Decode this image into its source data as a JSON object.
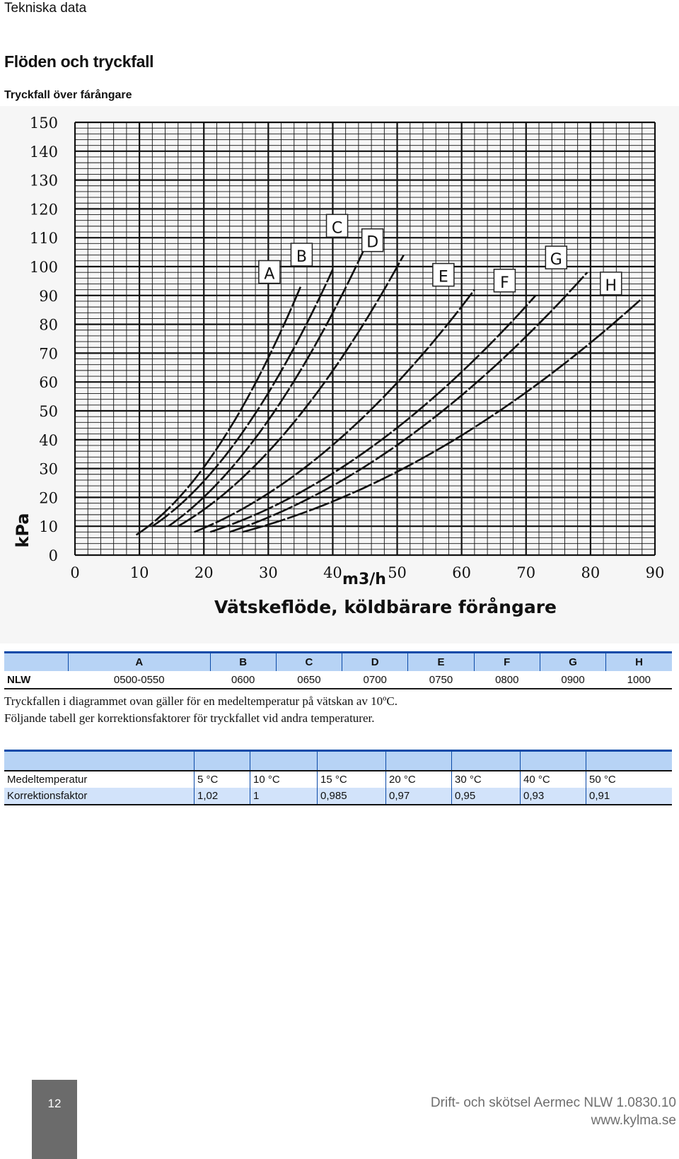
{
  "header": {
    "section": "Tekniska data",
    "title": "Flöden och tryckfall",
    "subtitle": "Tryckfall över fárångare"
  },
  "chart_data": {
    "type": "line",
    "title": "",
    "xlabel": "m3/h",
    "xlabel2": "Vätskeflöde, köldbärare förångare",
    "ylabel": "kPa",
    "xlim": [
      0,
      90
    ],
    "ylim": [
      0,
      150
    ],
    "x_ticks": [
      0,
      10,
      20,
      30,
      40,
      50,
      60,
      70,
      80,
      90
    ],
    "y_ticks": [
      0,
      10,
      20,
      30,
      40,
      50,
      60,
      70,
      80,
      90,
      100,
      110,
      120,
      130,
      140,
      150
    ],
    "grid": true,
    "series": [
      {
        "name": "A",
        "x": [
          9.5,
          35
        ],
        "y": [
          7,
          93
        ]
      },
      {
        "name": "B",
        "x": [
          12,
          40
        ],
        "y": [
          10,
          99
        ]
      },
      {
        "name": "C",
        "x": [
          14.5,
          45.5
        ],
        "y": [
          10,
          109
        ]
      },
      {
        "name": "D",
        "x": [
          16,
          51
        ],
        "y": [
          10,
          104
        ]
      },
      {
        "name": "E",
        "x": [
          18.5,
          62
        ],
        "y": [
          8,
          92
        ]
      },
      {
        "name": "F",
        "x": [
          21,
          71.5
        ],
        "y": [
          8,
          90
        ]
      },
      {
        "name": "G",
        "x": [
          24,
          79.5
        ],
        "y": [
          8,
          98
        ]
      },
      {
        "name": "H",
        "x": [
          26,
          88
        ],
        "y": [
          8,
          89
        ]
      }
    ]
  },
  "model_table": {
    "headers": [
      "",
      "A",
      "B",
      "C",
      "D",
      "E",
      "F",
      "G",
      "H"
    ],
    "row_label": "NLW",
    "values": [
      "0500-0550",
      "0600",
      "0650",
      "0700",
      "0750",
      "0800",
      "0900",
      "1000"
    ]
  },
  "note": "Tryckfallen i diagrammet ovan gäller för en medeltemperatur på vätskan av 10ºC. Följande tabell ger korrektionsfaktorer för tryckfallet vid andra temperaturer.",
  "correction_table": {
    "row1_label": "Medeltemperatur",
    "row1": [
      "5 °C",
      "10 °C",
      "15 °C",
      "20 °C",
      "30 °C",
      "40 °C",
      "50 °C"
    ],
    "row2_label": "Korrektionsfaktor",
    "row2": [
      "1,02",
      "1",
      "0,985",
      "0,97",
      "0,95",
      "0,93",
      "0,91"
    ]
  },
  "footer": {
    "page": "12",
    "line1": "Drift- och skötsel Aermec NLW 1.0830.10",
    "line2": "www.kylma.se"
  },
  "colors": {
    "table_header_bg": "#b7d3f5",
    "table_rule": "#0b4aa8",
    "footer_box": "#6b6b6b"
  }
}
